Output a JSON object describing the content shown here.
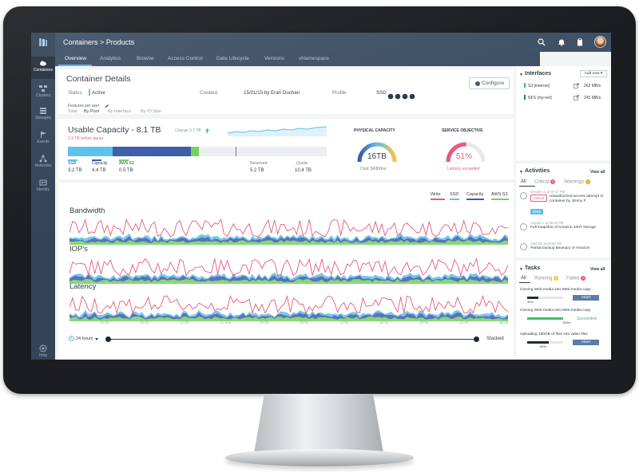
{
  "header": {
    "breadcrumb": "Containers > Products"
  },
  "nav": {
    "items": [
      {
        "label": "Containers",
        "icon": "cloud-icon"
      },
      {
        "label": "Clusters",
        "icon": "cluster-icon"
      },
      {
        "label": "Storages",
        "icon": "storage-icon"
      },
      {
        "label": "Events",
        "icon": "flag-icon"
      },
      {
        "label": "Networks",
        "icon": "network-icon"
      },
      {
        "label": "Identity",
        "icon": "identity-icon"
      }
    ],
    "help": "Help"
  },
  "tabs": [
    "Overview",
    "Analytics",
    "Browse",
    "Access Control",
    "Data Lifecycle",
    "Versions",
    "vNamespace"
  ],
  "details": {
    "title": "Container Details",
    "configure": "Configure",
    "status_label": "Status",
    "status_value": "Active",
    "created_label": "Created",
    "created_value": "15/01/15 by Eran Duchan",
    "profile_label": "Profile",
    "profile_value": "SSD",
    "features_link": "Features per user"
  },
  "capacity": {
    "title": "Usable Capacity - 8.1 TB",
    "quota_note": "2.3 TB before quota",
    "charge_label": "Charge",
    "charge_value": "0.7 TB",
    "legend": [
      {
        "label": "SSD",
        "value": "3.2 TB",
        "color": "#5bc0eb"
      },
      {
        "label": "Capacity",
        "value": "4.4 TB",
        "color": "#3d5ba9"
      },
      {
        "label": "AWS:S3",
        "value": "0.5 TB",
        "color": "#72d15d"
      }
    ],
    "reserved_label": "Reserved",
    "reserved_value": "5.2 TB",
    "quota_label": "Quota",
    "quota_value": "10.4 TB",
    "physical": {
      "title": "PHYSICAL CAPACITY",
      "value": "16TB",
      "cost": "Cost: $430/mo"
    },
    "service": {
      "title": "SERVICE OBJECTIVE",
      "value": "51%",
      "note": "Latency exceeded",
      "fraction": 0.51
    }
  },
  "filters": {
    "items": [
      "Total",
      "By Pool",
      "By Interface",
      "By IO Size"
    ],
    "active": 1
  },
  "series": [
    {
      "label": "Write",
      "color": "#e85a7a"
    },
    {
      "label": "SSD",
      "color": "#5bc0eb"
    },
    {
      "label": "Capacity",
      "color": "#3d5ba9"
    },
    {
      "label": "AWS:S3",
      "color": "#72d15d"
    }
  ],
  "charts": [
    "Bandwidth",
    "IOP's",
    "Latency"
  ],
  "x_ticks": [
    "16:00",
    "20:00",
    "12:00",
    "24 Sep",
    "04:00",
    "08:00",
    "12:00",
    "16:00",
    "20:00",
    "24:00",
    "16:00"
  ],
  "timeline": {
    "range": "24 hours",
    "mode": "Stacked"
  },
  "interfaces": {
    "title": "Interfaces",
    "add": "Add new",
    "rows": [
      {
        "name": "S3 (internet)",
        "rate": "262 MB/s",
        "color": "#3fbf6e"
      },
      {
        "name": "NFS (my-net)",
        "rate": "245 MB/s",
        "color": "#3d5ba9"
      }
    ]
  },
  "activities": {
    "title": "Activities",
    "view_all": "View all",
    "tabs": [
      "All",
      "Critical",
      "Warnings"
    ],
    "critical_count": "3",
    "warnings_count": "1",
    "items": [
      {
        "date": "October 4, at 07:47 PM",
        "tag": "Critical",
        "text": "Unauthorized access attempt to container by Jimmy F.",
        "action": "Block"
      },
      {
        "date": "August 1, at 08:45 PM",
        "text": "Full snapshot of Amazon 100T storage"
      },
      {
        "date": "April 26, at 09:30 AM",
        "text": "Partial backup Backup1 of Amazon"
      }
    ]
  },
  "tasks": {
    "title": "Tasks",
    "view_all": "View all",
    "tabs": [
      "All",
      "Running",
      "Failed"
    ],
    "running_count": "5",
    "failed_count": "1",
    "items": [
      {
        "text": "Cloning Web-media into Web-media-copy",
        "progress": "30%",
        "fraction": 0.3,
        "action": "Abort"
      },
      {
        "text": "Cloning Web-media into Web-media-copy",
        "progress": "100%",
        "fraction": 1.0,
        "action": "Succeeded"
      },
      {
        "text": "Uploading 150GB of files into video files",
        "progress": "60%",
        "fraction": 0.6,
        "action": "Abort"
      }
    ]
  }
}
